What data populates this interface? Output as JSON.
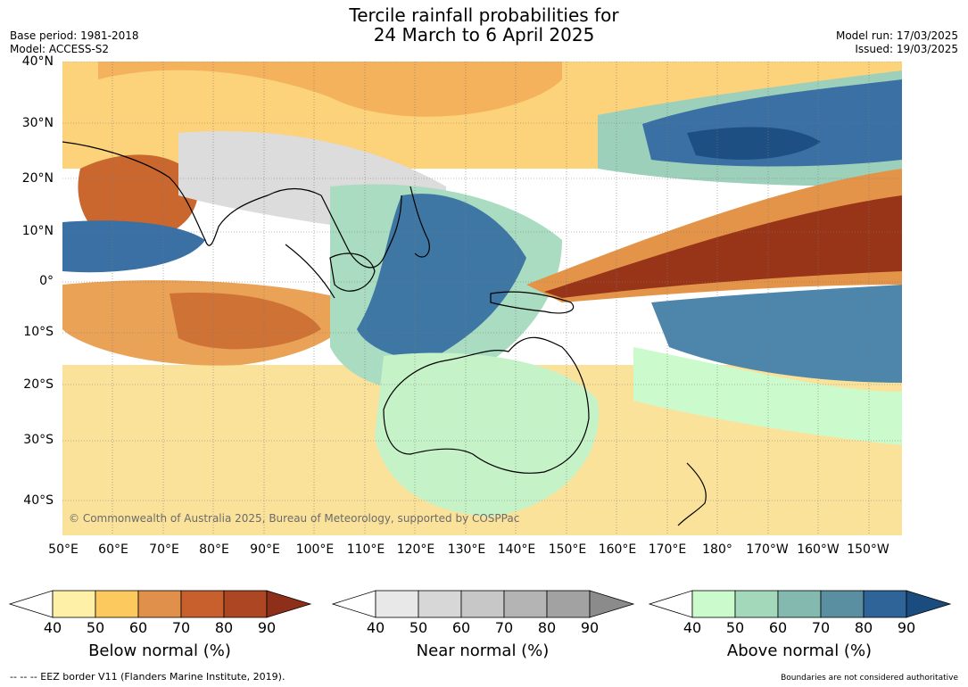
{
  "header": {
    "title_line1": "Tercile rainfall probabilities for",
    "title_line2": "24 March to 6 April 2025",
    "base_period": "Base period: 1981-2018",
    "model": "Model: ACCESS-S2",
    "model_run": "Model run: 17/03/2025",
    "issued": "Issued: 19/03/2025"
  },
  "map": {
    "lat_labels": [
      "40°N",
      "30°N",
      "20°N",
      "10°N",
      "0°",
      "10°S",
      "20°S",
      "30°S",
      "40°S"
    ],
    "lon_labels": [
      "50°E",
      "60°E",
      "70°E",
      "80°E",
      "90°E",
      "100°E",
      "110°E",
      "120°E",
      "130°E",
      "140°E",
      "150°E",
      "160°E",
      "170°E",
      "180°",
      "170°W",
      "160°W",
      "150°W"
    ],
    "copyright": "© Commonwealth of Australia 2025, Bureau of Meteorology, supported by COSPPac"
  },
  "colorbars": [
    {
      "name": "below",
      "title": "Below normal (%)",
      "ticks": [
        "40",
        "50",
        "60",
        "70",
        "80",
        "90"
      ],
      "colors": [
        "#fff0a8",
        "#fcc95e",
        "#e0904a",
        "#c8602e",
        "#ad4622",
        "#8e2f19"
      ]
    },
    {
      "name": "near",
      "title": "Near normal (%)",
      "ticks": [
        "40",
        "50",
        "60",
        "70",
        "80",
        "90"
      ],
      "colors": [
        "#e8e8e8",
        "#d7d7d7",
        "#c7c7c7",
        "#b4b4b4",
        "#a2a2a2",
        "#8b8b8b"
      ]
    },
    {
      "name": "above",
      "title": "Above normal (%)",
      "ticks": [
        "40",
        "50",
        "60",
        "70",
        "80",
        "90"
      ],
      "colors": [
        "#cbfbcc",
        "#a3d8bb",
        "#84b9b0",
        "#5a8fa2",
        "#2f6499",
        "#1a4c80"
      ]
    }
  ],
  "footer": {
    "eez_note": "--  --  -- EEZ border V11 (Flanders Marine Institute, 2019).",
    "boundaries_note": "Boundaries are not considered authoritative"
  }
}
